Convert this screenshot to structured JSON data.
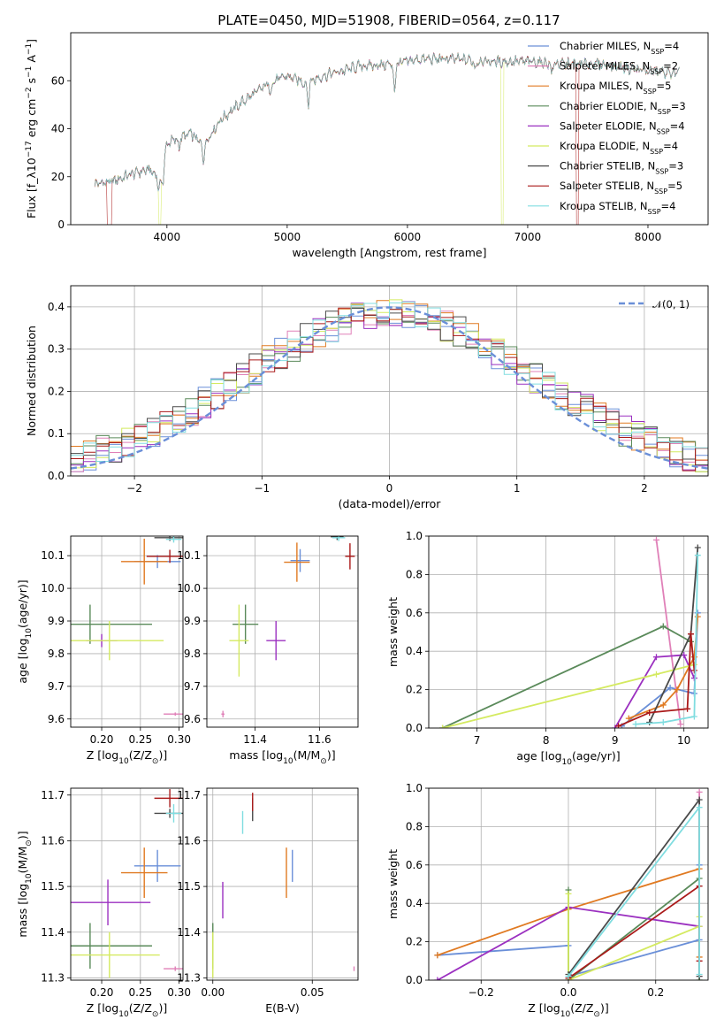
{
  "figure": {
    "title": "PLATE=0450, MJD=51908, FIBERID=0564, z=0.117"
  },
  "models": [
    {
      "label": "Chabrier MILES, N_SSP=4",
      "color": "#6a8fd8"
    },
    {
      "label": "Salpeter MILES, N_SSP=2",
      "color": "#e080b8"
    },
    {
      "label": "Kroupa MILES, N_SSP=5",
      "color": "#e07a22"
    },
    {
      "label": "Chabrier ELODIE, N_SSP=3",
      "color": "#5a8a5a"
    },
    {
      "label": "Salpeter ELODIE, N_SSP=4",
      "color": "#9b30c0"
    },
    {
      "label": "Kroupa ELODIE, N_SSP=4",
      "color": "#d4ea60"
    },
    {
      "label": "Chabrier STELIB, N_SSP=3",
      "color": "#4a4a4a"
    },
    {
      "label": "Salpeter STELIB, N_SSP=5",
      "color": "#aa1a1a"
    },
    {
      "label": "Kroupa STELIB, N_SSP=4",
      "color": "#80dde0"
    }
  ],
  "chart_data": [
    {
      "id": "spectrum",
      "type": "line",
      "xlabel": "wavelength [Angstrom, rest frame]",
      "ylabel": "Flux [f_λ10^-17 erg cm^-2 s^-1 A^-1]",
      "xlim": [
        3200,
        8500
      ],
      "ylim": [
        0,
        80
      ],
      "xticks": [
        4000,
        5000,
        6000,
        7000,
        8000
      ],
      "yticks": [
        0,
        20,
        40,
        60
      ],
      "grid": false,
      "legend": "top-right",
      "continuum": [
        [
          3400,
          17
        ],
        [
          3550,
          18
        ],
        [
          3700,
          21
        ],
        [
          3850,
          23
        ],
        [
          3950,
          19
        ],
        [
          4000,
          34
        ],
        [
          4200,
          38
        ],
        [
          4300,
          33
        ],
        [
          4450,
          44
        ],
        [
          4650,
          52
        ],
        [
          4850,
          59
        ],
        [
          5000,
          62
        ],
        [
          5150,
          59
        ],
        [
          5300,
          62
        ],
        [
          5600,
          66
        ],
        [
          5900,
          67
        ],
        [
          6100,
          69
        ],
        [
          6400,
          69
        ],
        [
          6700,
          68
        ],
        [
          7000,
          68
        ],
        [
          7300,
          67
        ],
        [
          7600,
          67
        ],
        [
          8000,
          64
        ],
        [
          8260,
          63
        ]
      ],
      "absorption_dips": [
        [
          3933,
          6
        ],
        [
          3968,
          7
        ],
        [
          4101,
          4
        ],
        [
          4305,
          7
        ],
        [
          4861,
          5
        ],
        [
          5175,
          10
        ],
        [
          5893,
          12
        ],
        [
          6563,
          4
        ],
        [
          7200,
          5
        ]
      ],
      "model_dropouts": [
        [
          3500,
          3540,
          7
        ],
        [
          3930,
          3950,
          5
        ],
        [
          6780,
          6800,
          3
        ],
        [
          7400,
          7420,
          7
        ]
      ]
    },
    {
      "id": "residuals",
      "type": "histogram",
      "xlabel": "(data-model)/error",
      "ylabel": "Normed distribution",
      "xlim": [
        -2.5,
        2.5
      ],
      "ylim": [
        0,
        0.45
      ],
      "xticks": [
        -2,
        -1,
        0,
        1,
        2
      ],
      "yticks": [
        0.0,
        0.1,
        0.2,
        0.3,
        0.4
      ],
      "grid": true,
      "legend": "top-right",
      "reference": {
        "label": "𝒩(0, 1)",
        "mean": 0,
        "sigma": 1,
        "color": "#6a8fd8"
      }
    },
    {
      "id": "age-vs-Z",
      "type": "scatter",
      "xlabel": "Z [log10(Z/Z_⊙)]",
      "ylabel": "age  [log10(age/yr)]",
      "xlim": [
        0.16,
        0.305
      ],
      "ylim": [
        9.575,
        10.16
      ],
      "xticks": [
        0.2,
        0.25,
        0.3
      ],
      "yticks": [
        9.6,
        9.7,
        9.8,
        9.9,
        10.0,
        10.1
      ],
      "grid": true,
      "points": [
        {
          "x": 0.272,
          "y": 10.082,
          "xerr": 0.03,
          "yerr": 0.02
        },
        {
          "x": 0.295,
          "y": 9.615,
          "xerr": 0.015,
          "yerr": 0.005
        },
        {
          "x": 0.255,
          "y": 10.082,
          "xerr": 0.03,
          "yerr": 0.07
        },
        {
          "x": 0.185,
          "y": 9.89,
          "xerr": 0.08,
          "yerr": 0.06
        },
        {
          "x": 0.2,
          "y": 9.84,
          "xerr": 0.02,
          "yerr": 0.02
        },
        {
          "x": 0.21,
          "y": 9.84,
          "xerr": 0.07,
          "yerr": 0.06
        },
        {
          "x": 0.288,
          "y": 10.155,
          "xerr": 0.02,
          "yerr": 0.01
        },
        {
          "x": 0.288,
          "y": 10.098,
          "xerr": 0.03,
          "yerr": 0.02
        },
        {
          "x": 0.293,
          "y": 10.15,
          "xerr": 0.01,
          "yerr": 0.01
        }
      ]
    },
    {
      "id": "age-vs-mass",
      "type": "scatter",
      "xlabel": "mass [log10(M/M_⊙)]",
      "ylabel": "",
      "xlim": [
        11.25,
        11.72
      ],
      "ylim": [
        9.575,
        10.16
      ],
      "xticks": [
        11.4,
        11.6
      ],
      "yticks": [
        9.6,
        9.7,
        9.8,
        9.9,
        10.0,
        10.1
      ],
      "grid": true,
      "points": [
        {
          "x": 11.54,
          "y": 10.085,
          "xerr": 0.03,
          "yerr": 0.035
        },
        {
          "x": 11.3,
          "y": 9.615,
          "xerr": 0.005,
          "yerr": 0.01
        },
        {
          "x": 11.53,
          "y": 10.08,
          "xerr": 0.04,
          "yerr": 0.06
        },
        {
          "x": 11.37,
          "y": 9.89,
          "xerr": 0.04,
          "yerr": 0.06
        },
        {
          "x": 11.465,
          "y": 9.84,
          "xerr": 0.03,
          "yerr": 0.06
        },
        {
          "x": 11.35,
          "y": 9.84,
          "xerr": 0.03,
          "yerr": 0.11
        },
        {
          "x": 11.655,
          "y": 10.158,
          "xerr": 0.02,
          "yerr": 0.01
        },
        {
          "x": 11.695,
          "y": 10.098,
          "xerr": 0.015,
          "yerr": 0.04
        },
        {
          "x": 11.66,
          "y": 10.155,
          "xerr": 0.02,
          "yerr": 0.01
        }
      ]
    },
    {
      "id": "weight-vs-age",
      "type": "line",
      "xlabel": "age  [log10(age/yr)]",
      "ylabel": "mass weight",
      "xlim": [
        6.3,
        10.35
      ],
      "ylim": [
        0,
        1
      ],
      "xticks": [
        7,
        8,
        9,
        10
      ],
      "yticks": [
        0.0,
        0.2,
        0.4,
        0.6,
        0.8,
        1.0
      ],
      "grid": true,
      "series": [
        {
          "x": [
            9.1,
            9.8,
            10.15,
            10.2
          ],
          "y": [
            0.01,
            0.21,
            0.18,
            0.6
          ]
        },
        {
          "x": [
            9.6,
            9.95
          ],
          "y": [
            0.98,
            0.02
          ]
        },
        {
          "x": [
            9.2,
            9.7,
            9.9,
            10.15,
            10.2
          ],
          "y": [
            0.05,
            0.12,
            0.2,
            0.37,
            0.58
          ]
        },
        {
          "x": [
            6.5,
            9.7,
            10.1
          ],
          "y": [
            0.0,
            0.53,
            0.45
          ]
        },
        {
          "x": [
            9.0,
            9.6,
            10.0,
            10.15
          ],
          "y": [
            0.0,
            0.37,
            0.38,
            0.26
          ]
        },
        {
          "x": [
            6.5,
            9.6,
            10.15
          ],
          "y": [
            0.0,
            0.28,
            0.33
          ]
        },
        {
          "x": [
            9.5,
            10.1,
            10.2
          ],
          "y": [
            0.03,
            0.49,
            0.94
          ]
        },
        {
          "x": [
            9.05,
            9.5,
            10.05,
            10.1,
            10.15
          ],
          "y": [
            0.01,
            0.08,
            0.1,
            0.49,
            0.3
          ]
        },
        {
          "x": [
            9.3,
            9.7,
            10.15,
            10.2
          ],
          "y": [
            0.02,
            0.03,
            0.06,
            0.9
          ]
        }
      ]
    },
    {
      "id": "mass-vs-Z",
      "type": "scatter",
      "xlabel": "Z [log10(Z/Z_⊙)]",
      "ylabel": "mass [log10(M/M_⊙)]",
      "xlim": [
        0.16,
        0.305
      ],
      "ylim": [
        11.295,
        11.715
      ],
      "xticks": [
        0.2,
        0.25,
        0.3
      ],
      "yticks": [
        11.3,
        11.4,
        11.5,
        11.6,
        11.7
      ],
      "grid": true,
      "points": [
        {
          "x": 0.272,
          "y": 11.545,
          "xerr": 0.03,
          "yerr": 0.035
        },
        {
          "x": 0.295,
          "y": 11.32,
          "xerr": 0.015,
          "yerr": 0.005
        },
        {
          "x": 0.255,
          "y": 11.53,
          "xerr": 0.03,
          "yerr": 0.055
        },
        {
          "x": 0.185,
          "y": 11.37,
          "xerr": 0.08,
          "yerr": 0.05
        },
        {
          "x": 0.208,
          "y": 11.465,
          "xerr": 0.055,
          "yerr": 0.05
        },
        {
          "x": 0.21,
          "y": 11.35,
          "xerr": 0.065,
          "yerr": 0.05
        },
        {
          "x": 0.288,
          "y": 11.66,
          "xerr": 0.02,
          "yerr": 0.01
        },
        {
          "x": 0.288,
          "y": 11.693,
          "xerr": 0.02,
          "yerr": 0.02
        },
        {
          "x": 0.293,
          "y": 11.66,
          "xerr": 0.01,
          "yerr": 0.02
        }
      ]
    },
    {
      "id": "mass-vs-EBV",
      "type": "scatter",
      "xlabel": "E(B-V)",
      "ylabel": "",
      "xlim": [
        -0.003,
        0.073
      ],
      "ylim": [
        11.295,
        11.715
      ],
      "xticks": [
        0.0,
        0.05
      ],
      "yticks": [
        11.3,
        11.4,
        11.5,
        11.6,
        11.7
      ],
      "grid": true,
      "points": [
        {
          "x": 0.04,
          "y": 11.545,
          "xerr": 0,
          "yerr": 0.035
        },
        {
          "x": 0.071,
          "y": 11.32,
          "xerr": 0,
          "yerr": 0.005
        },
        {
          "x": 0.037,
          "y": 11.53,
          "xerr": 0,
          "yerr": 0.055
        },
        {
          "x": 0.0,
          "y": 11.37,
          "xerr": 0,
          "yerr": 0.05
        },
        {
          "x": 0.005,
          "y": 11.47,
          "xerr": 0,
          "yerr": 0.04
        },
        {
          "x": 0.0,
          "y": 11.35,
          "xerr": 0,
          "yerr": 0.05
        },
        {
          "x": 0.02,
          "y": 11.668,
          "xerr": 0,
          "yerr": 0.025
        },
        {
          "x": 0.02,
          "y": 11.685,
          "xerr": 0,
          "yerr": 0.02
        },
        {
          "x": 0.015,
          "y": 11.64,
          "xerr": 0,
          "yerr": 0.025
        }
      ]
    },
    {
      "id": "weight-vs-Z",
      "type": "line",
      "xlabel": "Z [log10(Z/Z_⊙)]",
      "ylabel": "mass weight",
      "xlim": [
        -0.32,
        0.32
      ],
      "ylim": [
        0,
        1
      ],
      "xticks": [
        -0.2,
        0.0,
        0.2
      ],
      "yticks": [
        0.0,
        0.2,
        0.4,
        0.6,
        0.8,
        1.0
      ],
      "grid": true,
      "series": [
        {
          "x": [
            -0.3,
            0.0,
            0.0,
            0.3,
            0.3
          ],
          "y": [
            0.13,
            0.18,
            0.02,
            0.21,
            0.6
          ]
        },
        {
          "x": [
            0.3,
            0.3
          ],
          "y": [
            0.02,
            0.98
          ]
        },
        {
          "x": [
            -0.3,
            0.0,
            0.3,
            0.3
          ],
          "y": [
            0.13,
            0.37,
            0.58,
            0.12
          ]
        },
        {
          "x": [
            0.0,
            0.0,
            0.3,
            0.3
          ],
          "y": [
            0.47,
            0.0,
            0.53,
            0.0
          ]
        },
        {
          "x": [
            -0.3,
            0.0,
            0.3
          ],
          "y": [
            0.0,
            0.38,
            0.28
          ]
        },
        {
          "x": [
            0.0,
            0.0,
            0.3,
            0.3
          ],
          "y": [
            0.45,
            0.0,
            0.28,
            0.33
          ]
        },
        {
          "x": [
            0.0,
            0.3,
            0.3
          ],
          "y": [
            0.03,
            0.94,
            0.02
          ]
        },
        {
          "x": [
            0.0,
            0.3,
            0.3
          ],
          "y": [
            0.01,
            0.49,
            0.1
          ]
        },
        {
          "x": [
            0.0,
            0.3,
            0.3
          ],
          "y": [
            0.02,
            0.9,
            0.03
          ]
        }
      ]
    }
  ]
}
